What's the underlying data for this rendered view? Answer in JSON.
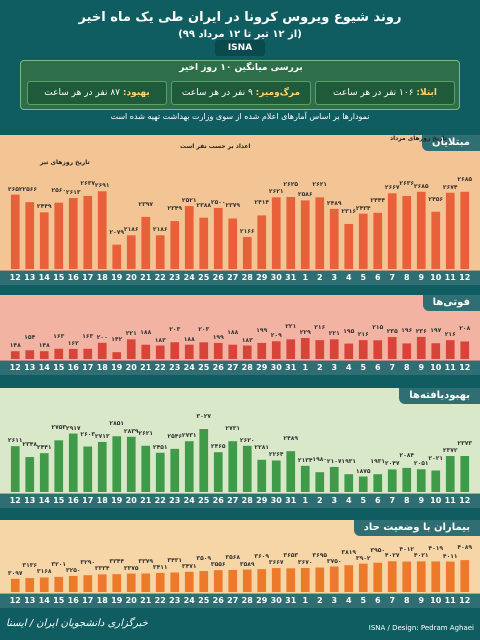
{
  "header": {
    "title": "روند شیوع ویروس کرونا در ایران طی یک ماه اخیر",
    "subtitle": "(از ۱۲ تیر تا ۱۲ مرداد ۹۹)",
    "brand": "ISNA"
  },
  "average": {
    "title": "بررسی میانگین ۱۰ روز اخیر",
    "infected": {
      "label": "ابتلا:",
      "value": "۱۰۶ نفر در هر ساعت"
    },
    "deaths": {
      "label": "مرگ‌ومیر:",
      "value": "۹ نفر در هر ساعت"
    },
    "recovered": {
      "label": "بهبود:",
      "value": "۸۷ نفر در هر ساعت"
    }
  },
  "note": "نمودارها بر اساس آمارهای اعلام شده از سوی وزارت بهداشت تهیه شده است",
  "days": [
    "12",
    "13",
    "14",
    "15",
    "16",
    "17",
    "18",
    "19",
    "20",
    "21",
    "22",
    "23",
    "24",
    "25",
    "26",
    "27",
    "28",
    "29",
    "30",
    "31",
    "1",
    "2",
    "3",
    "4",
    "5",
    "6",
    "7",
    "8",
    "9",
    "10",
    "11",
    "12"
  ],
  "annotations": {
    "tir_dates": "تاریخ روزهای تیر",
    "mordad_dates": "تاریخ روزهای مرداد",
    "per_person": "اعداد بر حسب نفر است"
  },
  "colors": {
    "panel1_bg": "#f3c594",
    "panel1_bar": "#e8613a",
    "panel2_bg": "#f2b3a2",
    "panel2_bar": "#d8443a",
    "panel3_bg": "#d9e8c9",
    "panel3_bar": "#3f9a4a",
    "panel4_bg": "#f6d6a6",
    "panel4_bar": "#ec7a2a"
  },
  "chart_data": [
    {
      "type": "bar",
      "title": "مبتلایان",
      "categories": [
        "12",
        "13",
        "14",
        "15",
        "16",
        "17",
        "18",
        "19",
        "20",
        "21",
        "22",
        "23",
        "24",
        "25",
        "26",
        "27",
        "28",
        "29",
        "30",
        "31",
        "1",
        "2",
        "3",
        "4",
        "5",
        "6",
        "7",
        "8",
        "9",
        "10",
        "11",
        "12"
      ],
      "values": [
        2652,
        2566,
        2449,
        2560,
        2613,
        2637,
        2691,
        2079,
        2186,
        2397,
        2186,
        2349,
        2521,
        2388,
        2500,
        2379,
        2166,
        2414,
        2621,
        2625,
        2586,
        2621,
        2489,
        2316,
        2434,
        2444,
        2667,
        2636,
        2685,
        2456,
        2674,
        2685
      ],
      "labels": [
        "۲۶۵۲",
        "۲۵۶۶",
        "۲۴۴۹",
        "۲۵۶۰",
        "۲۶۱۳",
        "۲۶۳۷",
        "۲۶۹۱",
        "۲۰۷۹",
        "۲۱۸۶",
        "۲۳۹۷",
        "۲۱۸۶",
        "۲۳۴۹",
        "۲۵۲۱",
        "۲۳۸۸",
        "۲۵۰۰",
        "۲۳۷۹",
        "۲۱۶۶",
        "۲۴۱۴",
        "۲۶۲۱",
        "۲۶۲۵",
        "۲۵۸۶",
        "۲۶۲۱",
        "۲۴۸۹",
        "۲۳۱۶",
        "۲۴۳۴",
        "۲۴۴۴",
        "۲۶۶۷",
        "۲۶۳۶",
        "۲۶۸۵",
        "۲۴۵۶",
        "۲۶۷۴",
        "۲۶۸۵"
      ],
      "ylim": [
        1800,
        2900
      ]
    },
    {
      "type": "bar",
      "title": "فوتی‌ها",
      "categories": [
        "12",
        "13",
        "14",
        "15",
        "16",
        "17",
        "18",
        "19",
        "20",
        "21",
        "22",
        "23",
        "24",
        "25",
        "26",
        "27",
        "28",
        "29",
        "30",
        "31",
        "1",
        "2",
        "3",
        "4",
        "5",
        "6",
        "7",
        "8",
        "9",
        "10",
        "11",
        "12"
      ],
      "values": [
        148,
        154,
        148,
        163,
        162,
        163,
        200,
        142,
        221,
        188,
        183,
        203,
        188,
        203,
        199,
        188,
        183,
        199,
        209,
        221,
        229,
        216,
        221,
        195,
        216,
        215,
        235,
        196,
        236,
        197,
        216,
        208
      ],
      "labels": [
        "۱۴۸",
        "۱۵۴",
        "۱۴۸",
        "۱۶۳",
        "۱۶۲",
        "۱۶۳",
        "۲۰۰",
        "۱۴۲",
        "۲۲۱",
        "۱۸۸",
        "۱۸۳",
        "۲۰۳",
        "۱۸۸",
        "۲۰۳",
        "۱۹۹",
        "۱۸۸",
        "۱۸۳",
        "۱۹۹",
        "۲۰۹",
        "۲۲۱",
        "۲۲۹",
        "۲۱۶",
        "۲۲۱",
        "۱۹۵",
        "۲۱۶",
        "۲۱۵",
        "۲۳۵",
        "۱۹۶",
        "۲۳۶",
        "۱۹۷",
        "۲۱۶",
        "۲۰۸"
      ],
      "ylim": [
        100,
        260
      ]
    },
    {
      "type": "bar",
      "title": "بهبودیافته‌ها",
      "categories": [
        "12",
        "13",
        "14",
        "15",
        "16",
        "17",
        "18",
        "19",
        "20",
        "21",
        "22",
        "23",
        "24",
        "25",
        "26",
        "27",
        "28",
        "29",
        "30",
        "31",
        "1",
        "2",
        "3",
        "4",
        "5",
        "6",
        "7",
        "8",
        "9",
        "10",
        "11",
        "12"
      ],
      "values": [
        2611,
        2348,
        2441,
        2753,
        2917,
        2603,
        2713,
        2851,
        2839,
        2621,
        2451,
        2546,
        2731,
        3027,
        2465,
        2731,
        2620,
        2281,
        2264,
        2489,
        2134,
        1980,
        2107,
        1931,
        1875,
        1931,
        2047,
        2084,
        2051,
        2021,
        2372,
        2373
      ],
      "labels": [
        "۲۶۱۱",
        "۲۳۴۸",
        "۲۴۴۱",
        "۲۷۵۳",
        "۲۹۱۷",
        "۲۶۰۳",
        "۲۷۱۳",
        "۲۸۵۱",
        "۲۸۳۹",
        "۲۶۲۱",
        "۲۴۵۱",
        "۲۵۴۶",
        "۲۷۳۱",
        "۳۰۲۷",
        "۲۴۶۵",
        "۲۷۳۱",
        "۲۶۲۰",
        "۲۲۸۱",
        "۲۲۶۴",
        "۲۴۸۹",
        "۲۱۳۴",
        "۱۹۸۰",
        "۲۱۰۷",
        "۱۹۳۱",
        "۱۸۷۵",
        "۱۹۳۱",
        "۲۰۴۷",
        "۲۰۸۴",
        "۲۰۵۱",
        "۲۰۲۱",
        "۲۳۷۲",
        "۲۳۷۳"
      ],
      "ylim": [
        1500,
        3100
      ]
    },
    {
      "type": "bar",
      "title": "بیماران با وضعیت حاد",
      "categories": [
        "12",
        "13",
        "14",
        "15",
        "16",
        "17",
        "18",
        "19",
        "20",
        "21",
        "22",
        "23",
        "24",
        "25",
        "26",
        "27",
        "28",
        "29",
        "30",
        "31",
        "1",
        "2",
        "3",
        "4",
        "5",
        "6",
        "7",
        "8",
        "9",
        "10",
        "11",
        "12"
      ],
      "values": [
        3097,
        3136,
        3168,
        3201,
        3250,
        3290,
        3334,
        3344,
        3375,
        3379,
        3411,
        3431,
        3471,
        3509,
        3556,
        3568,
        3589,
        3609,
        3667,
        3653,
        3670,
        3695,
        3750,
        3819,
        3902,
        3950,
        4027,
        4012,
        4021,
        4019,
        4011,
        4089
      ],
      "labels": [
        "۳۰۹۷",
        "۳۱۳۶",
        "۳۱۶۸",
        "۳۲۰۱",
        "۳۲۵۰",
        "۳۲۹۰",
        "۳۳۳۴",
        "۳۳۴۴",
        "۳۳۷۵",
        "۳۳۷۹",
        "۳۴۱۱",
        "۳۴۳۱",
        "۳۴۷۱",
        "۳۵۰۹",
        "۳۵۵۶",
        "۳۵۶۸",
        "۳۵۸۹",
        "۳۶۰۹",
        "۳۶۶۷",
        "۳۶۵۳",
        "۳۶۷۰",
        "۳۶۹۵",
        "۳۷۵۰",
        "۳۸۱۹",
        "۳۹۰۲",
        "۳۹۵۰",
        "۴۰۲۷",
        "۴۰۱۲",
        "۴۰۲۱",
        "۴۰۱۹",
        "۴۰۱۱",
        "۴۰۸۹"
      ],
      "ylim": [
        2400,
        4200
      ]
    }
  ],
  "footer": {
    "credit": "ISNA / Design: Pedram Aghaei",
    "agency": "خبرگزاری دانشجویان ایران / ایسنا"
  }
}
